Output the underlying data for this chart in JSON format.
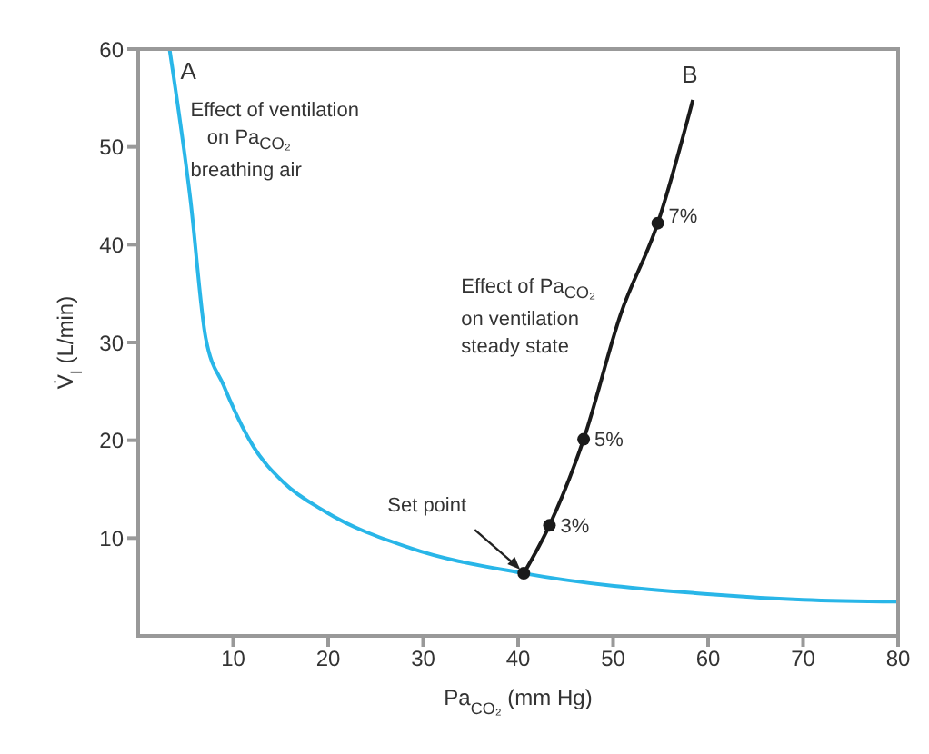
{
  "chart_data": {
    "type": "line",
    "xlabel": "Pa$_{CO₂}$ (mm Hg)",
    "ylabel": "V̇$_{I}$ (L/min)",
    "xlim": [
      0,
      80
    ],
    "xticks": [
      10,
      20,
      30,
      40,
      50,
      60,
      70,
      80
    ],
    "ylim": [
      0,
      60
    ],
    "yticks": [
      10,
      20,
      30,
      40,
      50,
      60
    ],
    "marker": "none",
    "line_style": "solid",
    "series": [
      {
        "color": "#29b6e8",
        "x": [
          3.3,
          5.5,
          7.1,
          9.0,
          12.1,
          15.3,
          19.7,
          28.6,
          40.6,
          59.6,
          70,
          80
        ],
        "values": [
          60,
          44.6,
          30.5,
          25.6,
          19.4,
          15.7,
          12.7,
          9.0,
          6.4,
          4.3,
          3.7,
          3.5
        ]
      },
      {
        "color": "#1a1a1a",
        "x": [
          40.6,
          43.3,
          46.9,
          50.8,
          54.7,
          58.4
        ],
        "values": [
          6.4,
          11.3,
          20.1,
          32.9,
          42.2,
          54.8
        ]
      },
      {
        "type": "scatter",
        "marker": "circle",
        "color": "#1a1a1a",
        "x": [
          40.6,
          43.3,
          46.9,
          54.7
        ],
        "values": [
          6.4,
          11.3,
          20.1,
          42.2
        ]
      }
    ],
    "annotations": [
      {
        "text": "A",
        "x": 3.3,
        "y": 60
      },
      {
        "text": "B",
        "x": 58.4,
        "y": 54.8
      },
      "Effect of ventilation\n   on Pa$_{CO₂}$\nbreathing air",
      "Effect of Pa$_{CO₂}$\non ventilation\nsteady state",
      {
        "text": "Set point",
        "x": 40.6,
        "y": 6.4
      },
      {
        "text": "3%",
        "x": 43.3,
        "y": 11.3
      },
      {
        "text": "5%",
        "x": 46.9,
        "y": 20.1
      },
      {
        "text": "7%",
        "x": 54.7,
        "y": 42.2
      }
    ]
  }
}
